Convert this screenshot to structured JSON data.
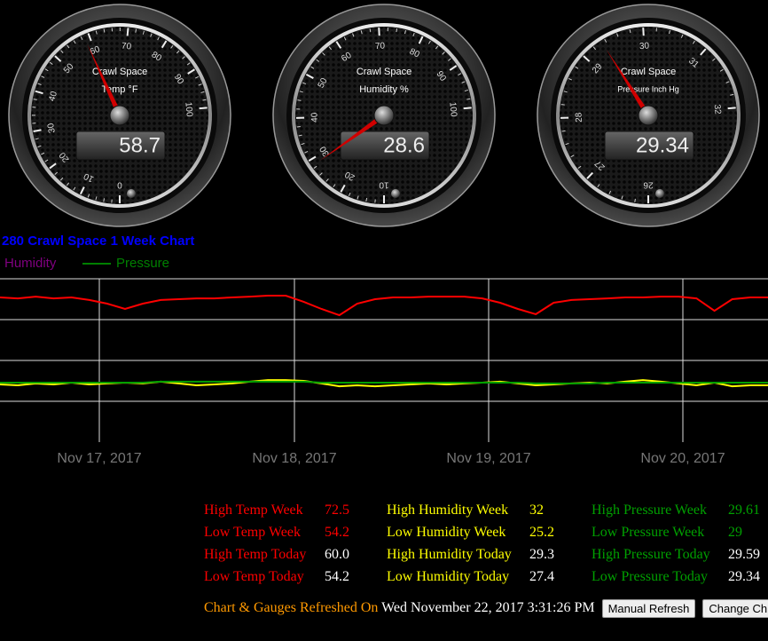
{
  "gauges": [
    {
      "title": "Crawl Space",
      "unit": "Temp °F",
      "value": 58.7,
      "ticks": [
        0,
        10,
        20,
        30,
        40,
        50,
        60,
        70,
        80,
        90,
        100
      ]
    },
    {
      "title": "Crawl Space",
      "unit": "Humidity %",
      "value": 28.6,
      "ticks": [
        10,
        20,
        30,
        40,
        50,
        60,
        70,
        80,
        90,
        100
      ]
    },
    {
      "title": "Crawl Space",
      "unit": "Pressure Inch Hg",
      "value": 29.34,
      "ticks": [
        26,
        27,
        28,
        29,
        30,
        31,
        32
      ]
    }
  ],
  "chart_data": {
    "type": "line",
    "title": "280 Crawl Space 1 Week Chart",
    "legend": [
      {
        "name": "Humidity",
        "color": "#800080"
      },
      {
        "name": "Pressure",
        "color": "#008000"
      }
    ],
    "xticks": [
      "Nov 17, 2017",
      "Nov 18, 2017",
      "Nov 19, 2017",
      "Nov 20, 2017"
    ],
    "ylim": [
      0,
      100
    ],
    "series": [
      {
        "color": "#ff0000",
        "values": [
          88.6,
          88.0,
          89.1,
          88.0,
          88.6,
          87.0,
          84.8,
          81.5,
          84.8,
          87.0,
          87.5,
          88.0,
          88.0,
          88.6,
          89.1,
          89.7,
          89.7,
          85.9,
          81.5,
          77.7,
          84.8,
          87.5,
          88.6,
          88.6,
          89.1,
          89.1,
          89.1,
          88.0,
          85.3,
          81.5,
          78.3,
          85.3,
          87.0,
          87.5,
          88.0,
          88.6,
          88.6,
          89.1,
          89.1,
          88.0,
          80.4,
          87.5,
          88.6,
          88.6
        ]
      },
      {
        "color": "#ffff00",
        "values": [
          35.3,
          34.8,
          35.9,
          35.3,
          36.4,
          35.3,
          35.9,
          36.4,
          35.9,
          37.0,
          35.9,
          34.8,
          35.3,
          35.9,
          37.0,
          38.0,
          38.0,
          37.5,
          35.9,
          34.2,
          34.8,
          34.2,
          34.8,
          35.3,
          35.9,
          35.3,
          35.9,
          36.4,
          37.0,
          35.9,
          34.8,
          35.3,
          35.9,
          36.4,
          35.9,
          37.0,
          38.0,
          37.0,
          35.9,
          34.8,
          36.4,
          34.2,
          34.8,
          34.8
        ]
      },
      {
        "color": "#00a000",
        "values": [
          36.4,
          36.4,
          36.4,
          36.4,
          36.4,
          36.4,
          36.4,
          36.4,
          36.4,
          37.0,
          37.0,
          37.0,
          37.0,
          37.0,
          37.0,
          37.0,
          37.0,
          37.0,
          36.4,
          36.4,
          36.4,
          36.4,
          36.4,
          36.4,
          36.4,
          36.4,
          36.4,
          36.4,
          36.4,
          36.4,
          35.9,
          35.9,
          35.9,
          35.9,
          36.4,
          36.4,
          36.4,
          36.4,
          36.4,
          36.4,
          36.4,
          36.4,
          36.4,
          36.4
        ]
      }
    ]
  },
  "stats": {
    "rows": [
      [
        {
          "label": "High Temp Week",
          "value": "72.5"
        },
        {
          "label": "High Humidity Week",
          "value": "32"
        },
        {
          "label": "High Pressure Week",
          "value": "29.61"
        }
      ],
      [
        {
          "label": "Low Temp Week",
          "value": "54.2"
        },
        {
          "label": "Low Humidity Week",
          "value": "25.2"
        },
        {
          "label": "Low Pressure Week",
          "value": "29"
        }
      ],
      [
        {
          "label": "High Temp Today",
          "value": "60.0"
        },
        {
          "label": "High Humidity Today",
          "value": "29.3"
        },
        {
          "label": "High Pressure Today",
          "value": "29.59"
        }
      ],
      [
        {
          "label": "Low Temp Today",
          "value": "54.2"
        },
        {
          "label": "Low Humidity Today",
          "value": "27.4"
        },
        {
          "label": "Low Pressure Today",
          "value": "29.34"
        }
      ]
    ]
  },
  "refresh": {
    "label": "Chart & Gauges Refreshed On",
    "time": "Wed November 22, 2017 3:31:26 PM",
    "buttons": [
      "Manual Refresh",
      "Change Ch"
    ]
  }
}
